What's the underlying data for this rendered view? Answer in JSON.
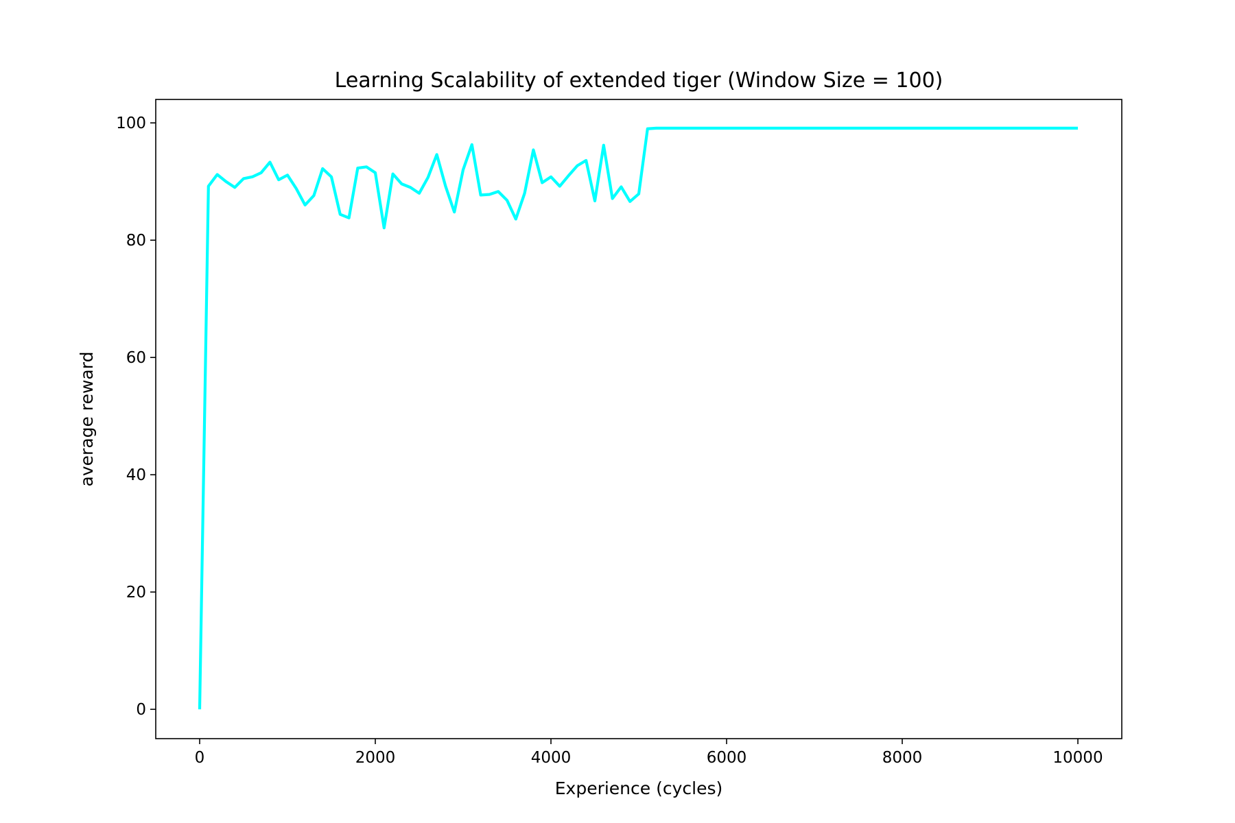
{
  "chart_data": {
    "type": "line",
    "title": "Learning Scalability of extended tiger (Window Size = 100)",
    "xlabel": "Experience (cycles)",
    "ylabel": "average reward",
    "xlim": [
      -500,
      10500
    ],
    "ylim": [
      -5,
      104
    ],
    "xticks": [
      0,
      2000,
      4000,
      6000,
      8000,
      10000
    ],
    "xtick_labels": [
      "0",
      "2000",
      "4000",
      "6000",
      "8000",
      "10000"
    ],
    "yticks": [
      0,
      20,
      40,
      60,
      80,
      100
    ],
    "ytick_labels": [
      "0",
      "20",
      "40",
      "60",
      "80",
      "100"
    ],
    "grid": false,
    "line_color": "#00ffff",
    "series": [
      {
        "x": [
          0,
          100,
          200,
          300,
          400,
          500,
          600,
          700,
          800,
          900,
          1000,
          1100,
          1200,
          1300,
          1400,
          1500,
          1600,
          1700,
          1800,
          1900,
          2000,
          2100,
          2200,
          2300,
          2400,
          2500,
          2600,
          2700,
          2800,
          2900,
          3000,
          3100,
          3200,
          3300,
          3400,
          3500,
          3600,
          3700,
          3800,
          3900,
          4000,
          4100,
          4200,
          4300,
          4400,
          4500,
          4600,
          4700,
          4800,
          4900,
          5000,
          5100,
          5200,
          10000
        ],
        "values": [
          0,
          89.2,
          91.2,
          90.0,
          89.0,
          90.5,
          90.8,
          91.5,
          93.3,
          90.3,
          91.1,
          88.8,
          86.0,
          87.6,
          92.2,
          90.8,
          84.4,
          83.8,
          92.3,
          92.5,
          91.5,
          82.1,
          91.3,
          89.6,
          89.0,
          88.0,
          90.7,
          94.6,
          89.2,
          84.8,
          92.0,
          96.3,
          87.7,
          87.8,
          88.3,
          86.8,
          83.6,
          88.0,
          95.4,
          89.8,
          90.8,
          89.2,
          91.0,
          92.7,
          93.6,
          86.7,
          96.2,
          87.1,
          89.1,
          86.6,
          87.9,
          99.0,
          99.1,
          99.1
        ]
      }
    ]
  }
}
